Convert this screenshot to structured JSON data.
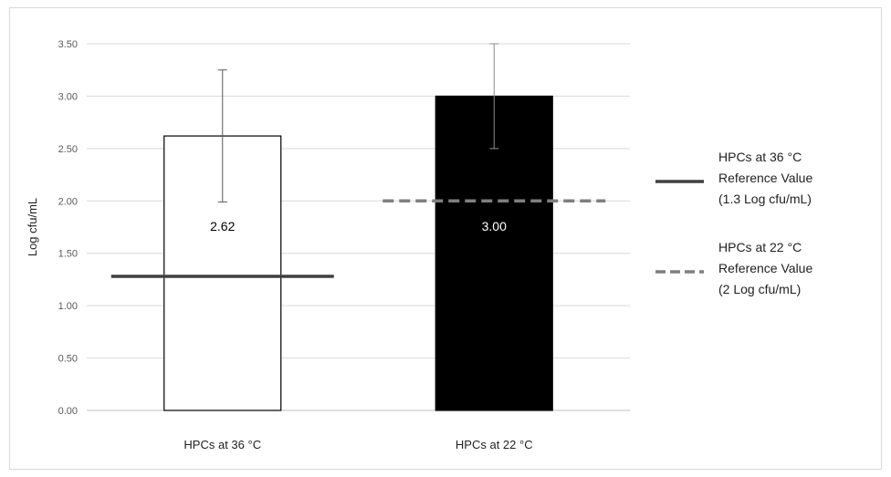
{
  "chart_data": {
    "type": "bar",
    "title": "",
    "xlabel": "",
    "ylabel": "Log cfu/mL",
    "ylim": [
      0,
      3.5
    ],
    "yticks": [
      "0.00",
      "0.50",
      "1.00",
      "1.50",
      "2.00",
      "2.50",
      "3.00",
      "3.50"
    ],
    "categories": [
      "HPCs at 36 °C",
      "HPCs at 22 °C"
    ],
    "values": [
      2.62,
      3.0
    ],
    "data_labels": [
      "2.62",
      "3.00"
    ],
    "error_bars": [
      {
        "low": 1.99,
        "high": 3.25
      },
      {
        "low": 2.5,
        "high": 3.5
      }
    ],
    "bar_colors": [
      "#ffffff",
      "#000000"
    ],
    "grid": true,
    "legend_position": "right",
    "reference_lines": [
      {
        "value": 1.28,
        "style": "solid",
        "color": "#404040",
        "category": 0,
        "legend": [
          "HPCs at 36 °C",
          "Reference Value",
          "(1.3 Log cfu/mL)"
        ]
      },
      {
        "value": 2.0,
        "style": "dashed",
        "color": "#7f7f7f",
        "category": 1,
        "legend": [
          "HPCs at 22 °C",
          "Reference Value",
          "(2 Log cfu/mL)"
        ]
      }
    ]
  }
}
